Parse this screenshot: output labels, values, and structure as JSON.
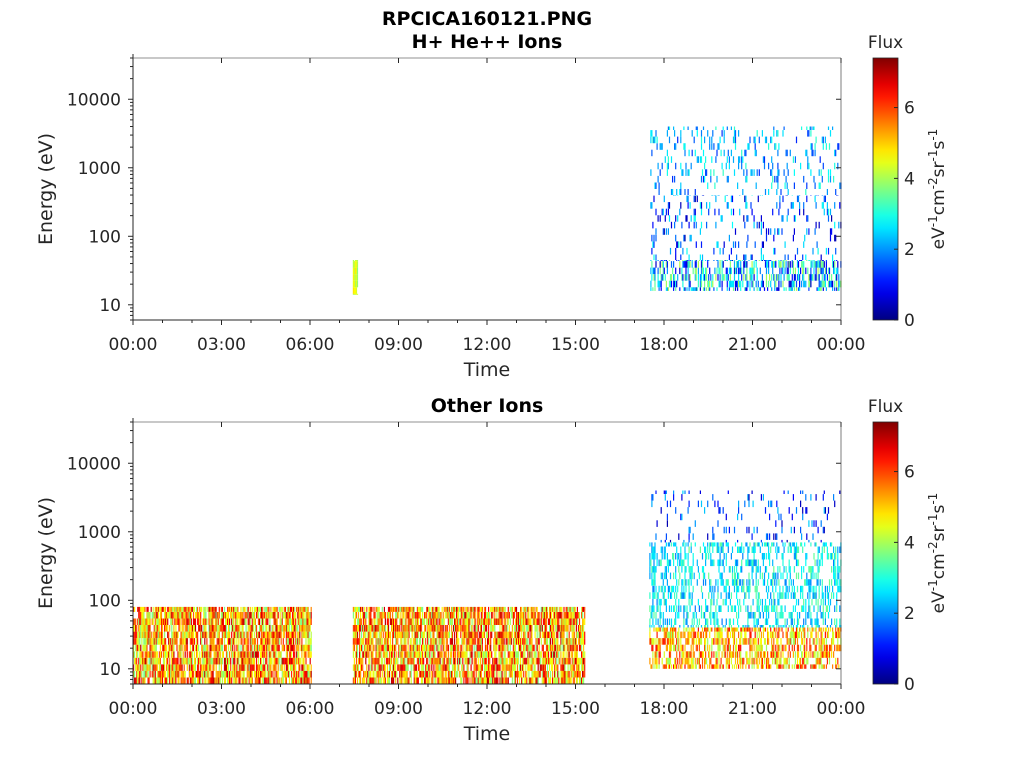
{
  "figure": {
    "title_line1": "RPCICA160121.PNG"
  },
  "chart_data": [
    {
      "type": "heatmap",
      "title": "H+ He++ Ions",
      "xlabel": "Time",
      "ylabel": "Energy (eV)",
      "x_ticks": [
        "00:00",
        "03:00",
        "06:00",
        "09:00",
        "12:00",
        "15:00",
        "18:00",
        "21:00",
        "00:00"
      ],
      "x_range_hours": [
        0,
        24
      ],
      "y_scale": "log",
      "y_ticks": [
        10,
        100,
        1000,
        10000
      ],
      "y_tick_labels": [
        "10",
        "100",
        "1000",
        "10000"
      ],
      "ylim": [
        6,
        40000
      ],
      "colorbar": {
        "title": "Flux",
        "unit_base": "eV",
        "unit_exponents": [
          "-1",
          "cm",
          "-2",
          "sr",
          "-1",
          "s",
          "-1"
        ],
        "range": [
          0,
          7.4
        ],
        "ticks": [
          0,
          2,
          4,
          6
        ]
      },
      "regions": [
        {
          "t_start": 7.45,
          "t_end": 7.6,
          "e_min": 14,
          "e_max": 45,
          "flux_min": 3.8,
          "flux_max": 4.8,
          "density": 0.9
        },
        {
          "t_start": 17.5,
          "t_end": 24.0,
          "e_min": 16,
          "e_max": 45,
          "flux_min": 0.5,
          "flux_max": 4.2,
          "density": 0.45
        },
        {
          "t_start": 17.5,
          "t_end": 24.0,
          "e_min": 45,
          "e_max": 400,
          "flux_min": 0.3,
          "flux_max": 3.0,
          "density": 0.12
        },
        {
          "t_start": 17.5,
          "t_end": 24.0,
          "e_min": 400,
          "e_max": 4000,
          "flux_min": 1.2,
          "flux_max": 3.2,
          "density": 0.12
        }
      ]
    },
    {
      "type": "heatmap",
      "title": "Other Ions",
      "xlabel": "Time",
      "ylabel": "Energy (eV)",
      "x_ticks": [
        "00:00",
        "03:00",
        "06:00",
        "09:00",
        "12:00",
        "15:00",
        "18:00",
        "21:00",
        "00:00"
      ],
      "x_range_hours": [
        0,
        24
      ],
      "y_scale": "log",
      "y_ticks": [
        10,
        100,
        1000,
        10000
      ],
      "y_tick_labels": [
        "10",
        "100",
        "1000",
        "10000"
      ],
      "ylim": [
        6,
        40000
      ],
      "colorbar": {
        "title": "Flux",
        "unit_base": "eV",
        "unit_exponents": [
          "-1",
          "cm",
          "-2",
          "sr",
          "-1",
          "s",
          "-1"
        ],
        "range": [
          0,
          7.4
        ],
        "ticks": [
          0,
          2,
          4,
          6
        ]
      },
      "regions": [
        {
          "t_start": 0.0,
          "t_end": 6.05,
          "e_min": 6,
          "e_max": 80,
          "flux_min": 3.6,
          "flux_max": 7.0,
          "density": 0.8
        },
        {
          "t_start": 7.45,
          "t_end": 15.3,
          "e_min": 6,
          "e_max": 80,
          "flux_min": 3.6,
          "flux_max": 7.0,
          "density": 0.8
        },
        {
          "t_start": 17.5,
          "t_end": 24.0,
          "e_min": 10,
          "e_max": 40,
          "flux_min": 3.8,
          "flux_max": 6.5,
          "density": 0.55
        },
        {
          "t_start": 17.5,
          "t_end": 24.0,
          "e_min": 40,
          "e_max": 700,
          "flux_min": 1.8,
          "flux_max": 3.6,
          "density": 0.35
        },
        {
          "t_start": 17.5,
          "t_end": 24.0,
          "e_min": 700,
          "e_max": 4000,
          "flux_min": 0.3,
          "flux_max": 2.5,
          "density": 0.08
        }
      ]
    }
  ]
}
